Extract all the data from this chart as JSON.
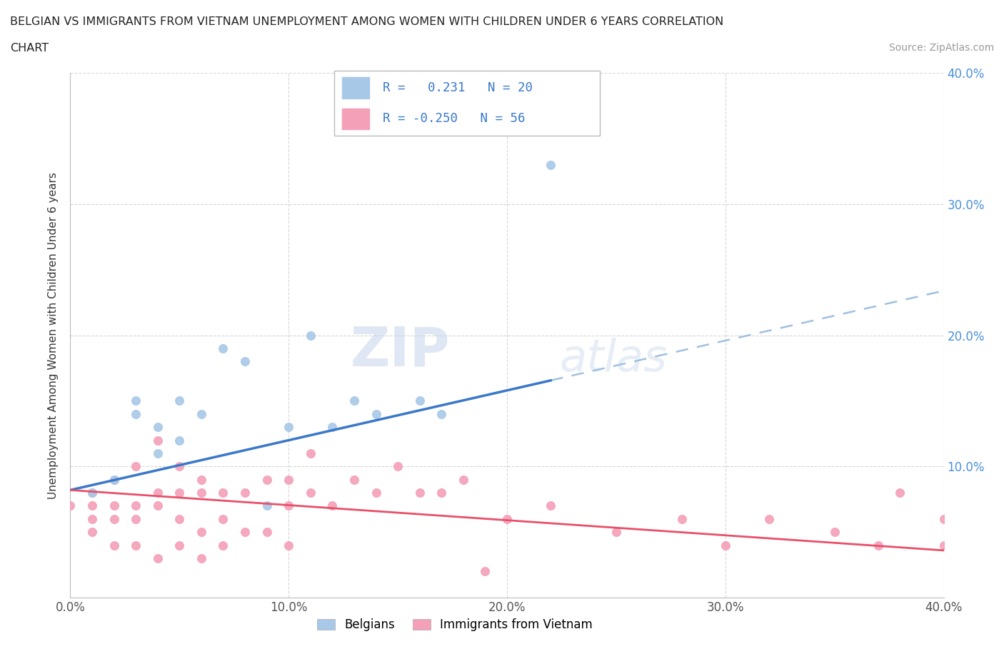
{
  "title_line1": "BELGIAN VS IMMIGRANTS FROM VIETNAM UNEMPLOYMENT AMONG WOMEN WITH CHILDREN UNDER 6 YEARS CORRELATION",
  "title_line2": "CHART",
  "source": "Source: ZipAtlas.com",
  "ylabel": "Unemployment Among Women with Children Under 6 years",
  "xlim": [
    0.0,
    0.4
  ],
  "ylim": [
    0.0,
    0.4
  ],
  "xticks": [
    0.0,
    0.1,
    0.2,
    0.3,
    0.4
  ],
  "yticks": [
    0.1,
    0.2,
    0.3,
    0.4
  ],
  "xtick_labels": [
    "0.0%",
    "10.0%",
    "20.0%",
    "30.0%",
    "40.0%"
  ],
  "right_ytick_labels": [
    "10.0%",
    "20.0%",
    "30.0%",
    "40.0%"
  ],
  "right_yticks": [
    0.1,
    0.2,
    0.3,
    0.4
  ],
  "belgians_color": "#A8C8E8",
  "vietnam_color": "#F4A0B8",
  "belgians_line_color": "#3A78C9",
  "vietnam_line_color": "#E8506A",
  "dashed_line_color": "#A0C0E0",
  "scatter_size": 70,
  "belgians_x": [
    0.01,
    0.02,
    0.03,
    0.03,
    0.04,
    0.04,
    0.05,
    0.05,
    0.06,
    0.07,
    0.08,
    0.09,
    0.1,
    0.11,
    0.12,
    0.13,
    0.14,
    0.16,
    0.17,
    0.22
  ],
  "belgians_y": [
    0.08,
    0.09,
    0.14,
    0.15,
    0.11,
    0.13,
    0.12,
    0.15,
    0.14,
    0.19,
    0.18,
    0.07,
    0.13,
    0.2,
    0.13,
    0.15,
    0.14,
    0.15,
    0.14,
    0.33
  ],
  "vietnam_x": [
    0.0,
    0.01,
    0.01,
    0.01,
    0.01,
    0.02,
    0.02,
    0.02,
    0.02,
    0.03,
    0.03,
    0.03,
    0.03,
    0.04,
    0.04,
    0.04,
    0.04,
    0.05,
    0.05,
    0.05,
    0.05,
    0.06,
    0.06,
    0.06,
    0.06,
    0.07,
    0.07,
    0.07,
    0.08,
    0.08,
    0.09,
    0.09,
    0.1,
    0.1,
    0.1,
    0.11,
    0.11,
    0.12,
    0.13,
    0.14,
    0.15,
    0.16,
    0.17,
    0.18,
    0.19,
    0.2,
    0.22,
    0.25,
    0.28,
    0.3,
    0.32,
    0.35,
    0.37,
    0.38,
    0.4,
    0.4
  ],
  "vietnam_y": [
    0.07,
    0.05,
    0.06,
    0.07,
    0.08,
    0.04,
    0.06,
    0.07,
    0.09,
    0.04,
    0.06,
    0.07,
    0.1,
    0.03,
    0.07,
    0.08,
    0.12,
    0.04,
    0.06,
    0.08,
    0.1,
    0.03,
    0.05,
    0.08,
    0.09,
    0.04,
    0.06,
    0.08,
    0.05,
    0.08,
    0.05,
    0.09,
    0.04,
    0.07,
    0.09,
    0.08,
    0.11,
    0.07,
    0.09,
    0.08,
    0.1,
    0.08,
    0.08,
    0.09,
    0.02,
    0.06,
    0.07,
    0.05,
    0.06,
    0.04,
    0.06,
    0.05,
    0.04,
    0.08,
    0.04,
    0.06
  ],
  "watermark_zip": "ZIP",
  "watermark_atlas": "atlas",
  "background_color": "#FFFFFF",
  "grid_color": "#CCCCCC",
  "belgians_trend_intercept": 0.082,
  "belgians_trend_slope": 0.38,
  "vietnam_trend_intercept": 0.082,
  "vietnam_trend_slope": -0.115
}
